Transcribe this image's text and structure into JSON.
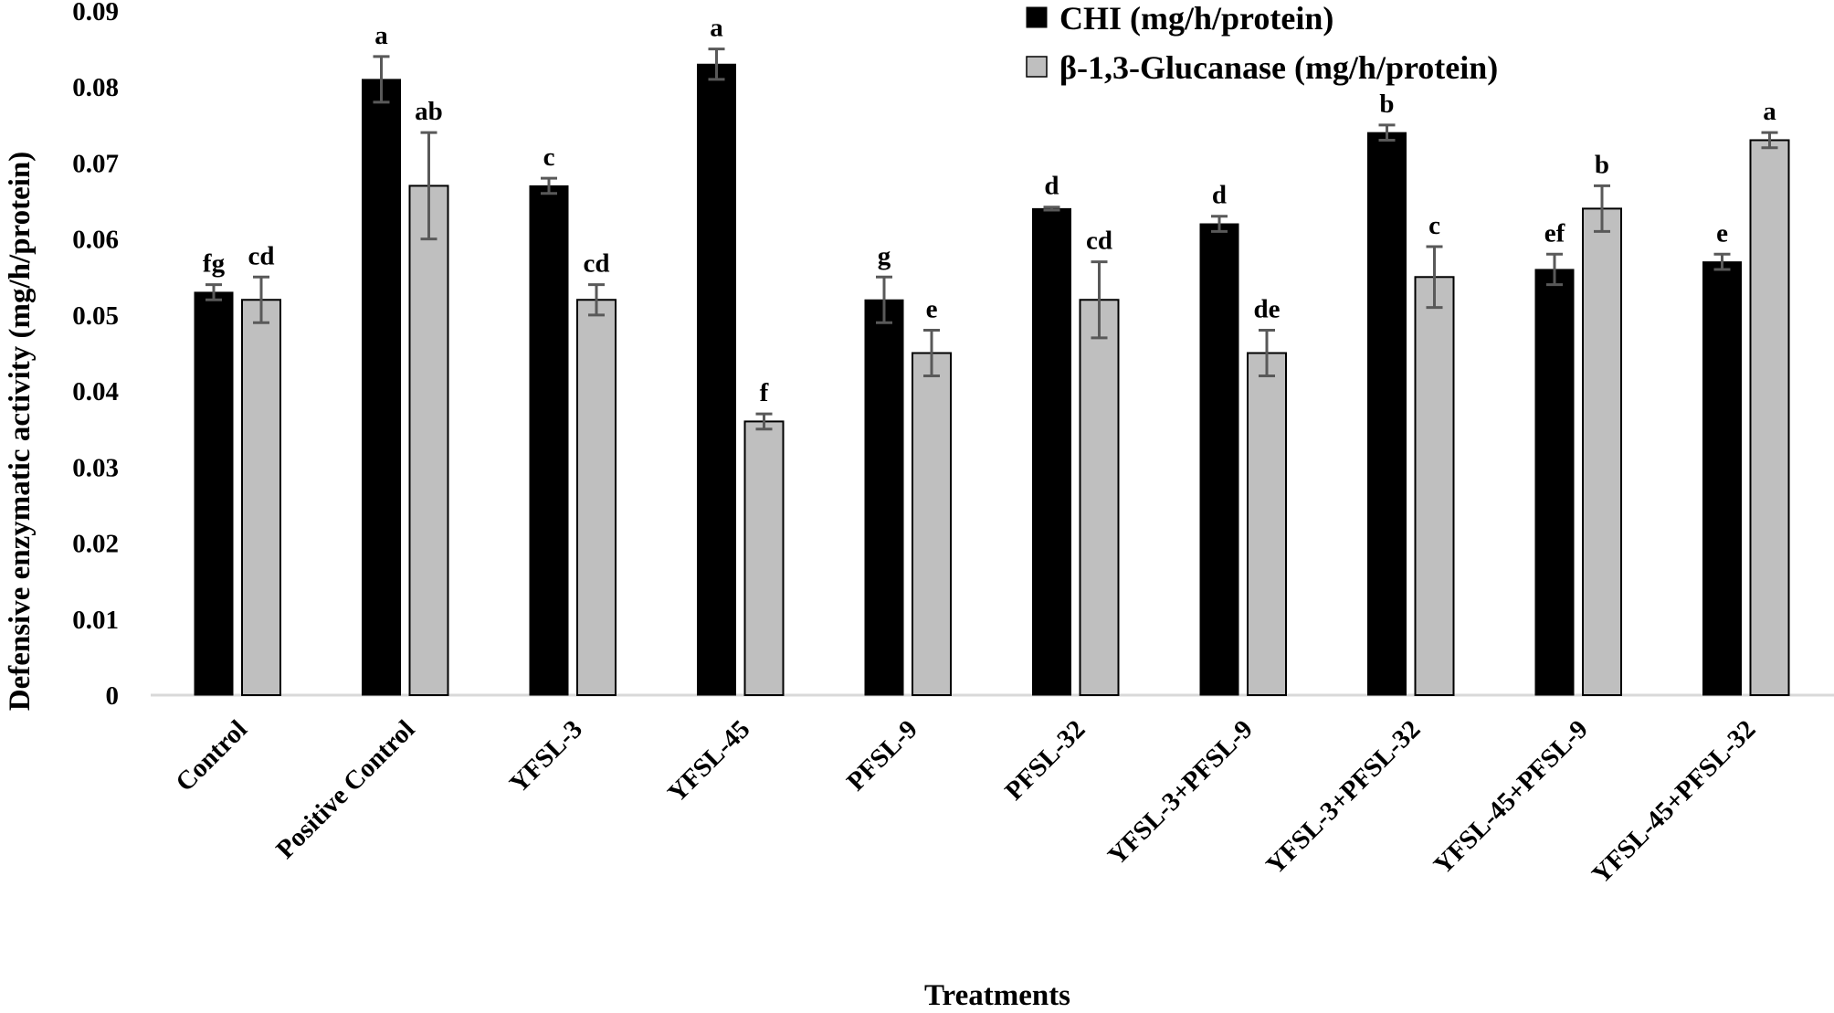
{
  "chart_data": {
    "type": "bar",
    "title": "",
    "xlabel": "Treatments",
    "ylabel": "Defensive enzymatic activity (mg/h/protein)",
    "ylim": [
      0,
      0.09
    ],
    "yticks": [
      0,
      0.01,
      0.02,
      0.03,
      0.04,
      0.05,
      0.06,
      0.07,
      0.08,
      0.09
    ],
    "ytick_labels": [
      "0",
      "0.01",
      "0.02",
      "0.03",
      "0.04",
      "0.05",
      "0.06",
      "0.07",
      "0.08",
      "0.09"
    ],
    "grid": false,
    "legend_position": "top-right",
    "categories": [
      "Control",
      "Positive Control",
      "YFSL-3",
      "YFSL-45",
      "PFSL-9",
      "PFSL-32",
      "YFSL-3+PFSL-9",
      "YFSL-3+PFSL-32",
      "YFSL-45+PFSL-9",
      "YFSL-45+PFSL-32"
    ],
    "series": [
      {
        "name": "CHI  (mg/h/protein)",
        "color": "#000000",
        "values": [
          0.053,
          0.081,
          0.067,
          0.083,
          0.052,
          0.064,
          0.062,
          0.074,
          0.056,
          0.057
        ],
        "errors": [
          0.001,
          0.003,
          0.001,
          0.002,
          0.003,
          0.0002,
          0.001,
          0.001,
          0.002,
          0.001
        ],
        "labels": [
          "fg",
          "a",
          "c",
          "a",
          "g",
          "d",
          "d",
          "b",
          "ef",
          "e"
        ]
      },
      {
        "name": "β-1,3-Glucanase (mg/h/protein)",
        "color": "#bfbfbf",
        "values": [
          0.052,
          0.067,
          0.052,
          0.036,
          0.045,
          0.052,
          0.045,
          0.055,
          0.064,
          0.073
        ],
        "errors": [
          0.003,
          0.007,
          0.002,
          0.001,
          0.003,
          0.005,
          0.003,
          0.004,
          0.003,
          0.001
        ],
        "labels": [
          "cd",
          "ab",
          "cd",
          "f",
          "e",
          "cd",
          "de",
          "c",
          "b",
          "a"
        ]
      }
    ]
  }
}
